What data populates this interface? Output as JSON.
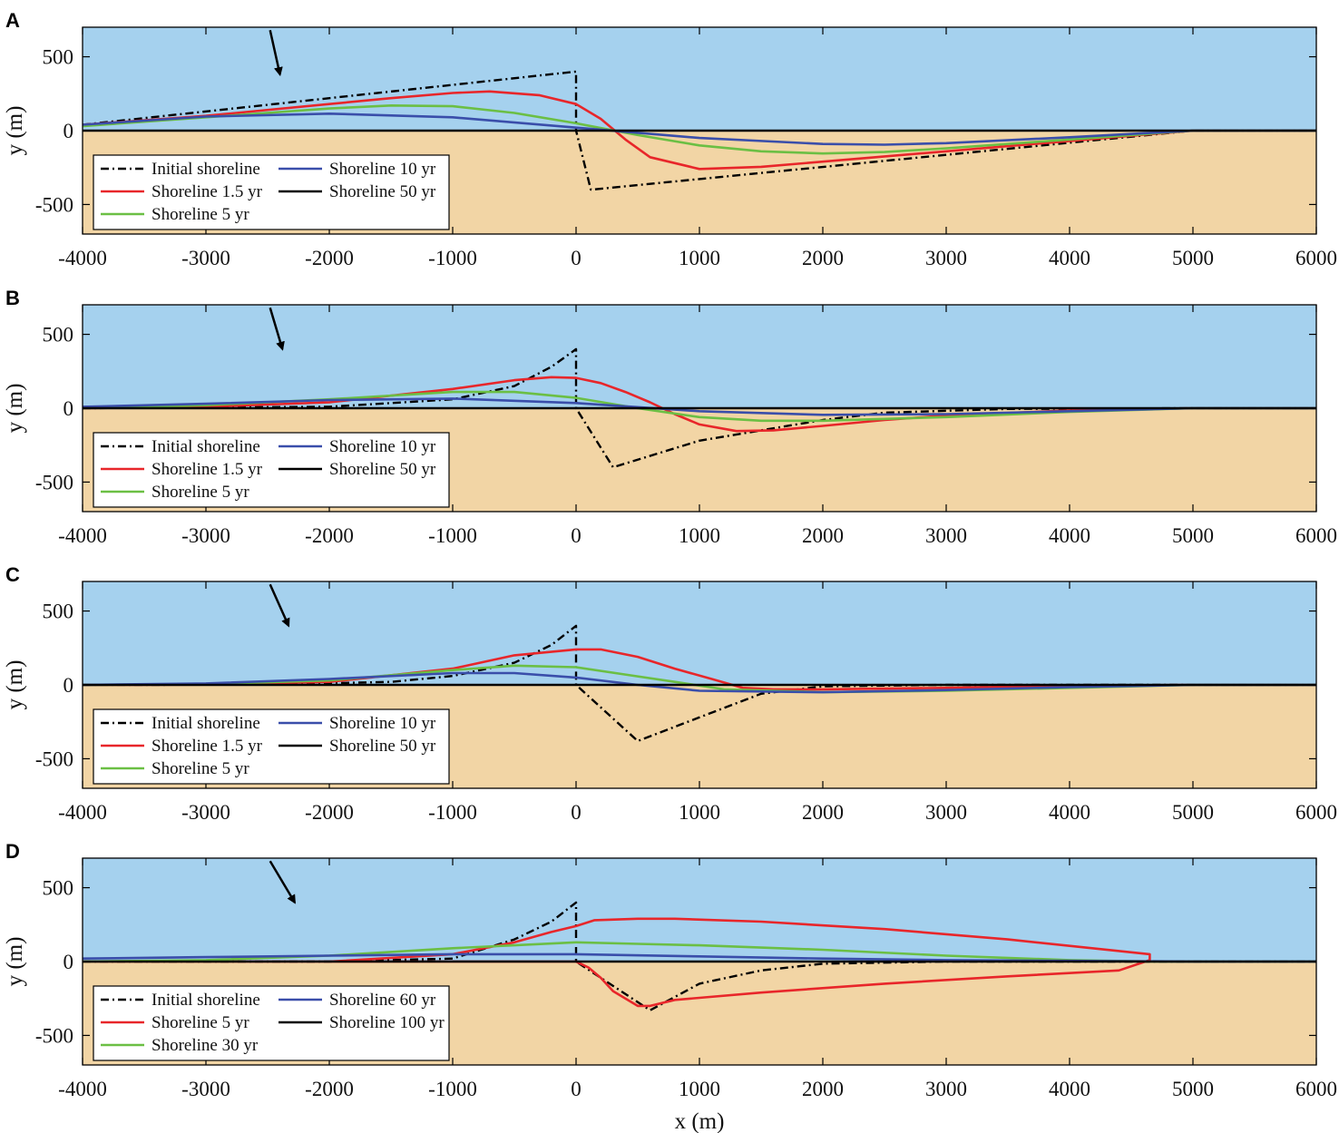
{
  "figure": {
    "xlabel": "x (m)",
    "ylabel": "y (m)"
  },
  "chart_data": [
    {
      "panel": "A",
      "type": "line",
      "xlabel": "",
      "ylabel": "y (m)",
      "xlim": [
        -4000,
        6000
      ],
      "ylim": [
        -700,
        700
      ],
      "xticks": [
        "-4000",
        "-3000",
        "-2000",
        "-1000",
        "0",
        "1000",
        "2000",
        "3000",
        "4000",
        "5000",
        "6000"
      ],
      "yticks": [
        "500",
        "0",
        "-500"
      ],
      "regions": {
        "sea_color": "#a5d1ee",
        "land_color": "#f2d5a5"
      },
      "wave_arrow": {
        "from": [
          -2480,
          680
        ],
        "to": [
          -2400,
          380
        ]
      },
      "legend": {
        "placement": "lower-left",
        "entries": [
          "Initial shoreline",
          "Shoreline 10 yr",
          "Shoreline 1.5 yr",
          "Shoreline 50 yr",
          "Shoreline 5 yr"
        ]
      },
      "series": [
        {
          "name": "Initial shoreline",
          "color": "#000000",
          "style": "dashdot",
          "x": [
            -4000,
            0,
            0,
            120,
            5000,
            6000
          ],
          "y": [
            40,
            400,
            0,
            -400,
            0,
            0
          ]
        },
        {
          "name": "Shoreline 1.5 yr",
          "color": "#e8262a",
          "style": "solid",
          "x": [
            -4000,
            -3000,
            -2000,
            -1500,
            -1000,
            -700,
            -300,
            0,
            200,
            400,
            600,
            1000,
            1500,
            2000,
            3000,
            4000,
            5000,
            6000
          ],
          "y": [
            40,
            100,
            180,
            220,
            255,
            265,
            240,
            180,
            80,
            -60,
            -180,
            -260,
            -245,
            -210,
            -140,
            -70,
            0,
            0
          ]
        },
        {
          "name": "Shoreline 5 yr",
          "color": "#6bbf44",
          "style": "solid",
          "x": [
            -4000,
            -3000,
            -2000,
            -1500,
            -1000,
            -500,
            0,
            500,
            1000,
            1500,
            2000,
            2500,
            3000,
            4000,
            5000,
            6000
          ],
          "y": [
            30,
            90,
            150,
            170,
            165,
            120,
            50,
            -30,
            -100,
            -140,
            -155,
            -145,
            -120,
            -60,
            0,
            0
          ]
        },
        {
          "name": "Shoreline 10 yr",
          "color": "#3a4eaa",
          "style": "solid",
          "x": [
            -4000,
            -3000,
            -2000,
            -1000,
            0,
            1000,
            2000,
            2500,
            3000,
            4000,
            5000,
            6000
          ],
          "y": [
            40,
            95,
            115,
            90,
            20,
            -50,
            -90,
            -95,
            -85,
            -45,
            0,
            0
          ]
        },
        {
          "name": "Shoreline 50 yr",
          "color": "#000000",
          "style": "solid",
          "x": [
            -4000,
            6000
          ],
          "y": [
            0,
            0
          ]
        }
      ]
    },
    {
      "panel": "B",
      "type": "line",
      "xlabel": "",
      "ylabel": "y (m)",
      "xlim": [
        -4000,
        6000
      ],
      "ylim": [
        -700,
        700
      ],
      "xticks": [
        "-4000",
        "-3000",
        "-2000",
        "-1000",
        "0",
        "1000",
        "2000",
        "3000",
        "4000",
        "5000",
        "6000"
      ],
      "yticks": [
        "500",
        "0",
        "-500"
      ],
      "regions": {
        "sea_color": "#a5d1ee",
        "land_color": "#f2d5a5"
      },
      "wave_arrow": {
        "from": [
          -2480,
          680
        ],
        "to": [
          -2380,
          400
        ]
      },
      "legend": {
        "placement": "lower-left",
        "entries": [
          "Initial shoreline",
          "Shoreline 10 yr",
          "Shoreline 1.5 yr",
          "Shoreline 50 yr",
          "Shoreline 5 yr"
        ]
      },
      "series": [
        {
          "name": "Initial shoreline",
          "color": "#000000",
          "style": "dashdot",
          "x": [
            -4000,
            -2000,
            -1000,
            -500,
            -200,
            0,
            0,
            300,
            1000,
            2000,
            2500,
            3500,
            5000,
            6000
          ],
          "y": [
            0,
            10,
            60,
            150,
            280,
            400,
            0,
            -400,
            -220,
            -80,
            -30,
            -5,
            0,
            0
          ]
        },
        {
          "name": "Shoreline 1.5 yr",
          "color": "#e8262a",
          "style": "solid",
          "x": [
            -4000,
            -3000,
            -2000,
            -1000,
            -500,
            -200,
            0,
            200,
            400,
            600,
            800,
            1000,
            1300,
            1600,
            2000,
            2500,
            3000,
            4000,
            5000,
            6000
          ],
          "y": [
            0,
            10,
            40,
            130,
            190,
            210,
            205,
            170,
            110,
            40,
            -40,
            -110,
            -155,
            -150,
            -120,
            -80,
            -50,
            -15,
            0,
            0
          ]
        },
        {
          "name": "Shoreline 5 yr",
          "color": "#6bbf44",
          "style": "solid",
          "x": [
            -4000,
            -3000,
            -2000,
            -1000,
            -500,
            0,
            500,
            1000,
            1500,
            2000,
            3000,
            4000,
            5000,
            6000
          ],
          "y": [
            0,
            20,
            60,
            110,
            110,
            70,
            0,
            -60,
            -85,
            -85,
            -60,
            -25,
            0,
            0
          ]
        },
        {
          "name": "Shoreline 10 yr",
          "color": "#3a4eaa",
          "style": "solid",
          "x": [
            -4000,
            -3000,
            -2000,
            -1000,
            0,
            1000,
            2000,
            3000,
            4000,
            5000,
            6000
          ],
          "y": [
            10,
            30,
            55,
            65,
            35,
            -20,
            -45,
            -40,
            -20,
            0,
            0
          ]
        },
        {
          "name": "Shoreline 50 yr",
          "color": "#000000",
          "style": "solid",
          "x": [
            -4000,
            6000
          ],
          "y": [
            0,
            0
          ]
        }
      ]
    },
    {
      "panel": "C",
      "type": "line",
      "xlabel": "",
      "ylabel": "y (m)",
      "xlim": [
        -4000,
        6000
      ],
      "ylim": [
        -700,
        700
      ],
      "xticks": [
        "-4000",
        "-3000",
        "-2000",
        "-1000",
        "0",
        "1000",
        "2000",
        "3000",
        "4000",
        "5000",
        "6000"
      ],
      "yticks": [
        "500",
        "0",
        "-500"
      ],
      "regions": {
        "sea_color": "#a5d1ee",
        "land_color": "#f2d5a5"
      },
      "wave_arrow": {
        "from": [
          -2480,
          680
        ],
        "to": [
          -2330,
          400
        ]
      },
      "legend": {
        "placement": "lower-left",
        "entries": [
          "Initial shoreline",
          "Shoreline 10 yr",
          "Shoreline 1.5 yr",
          "Shoreline 50 yr",
          "Shoreline 5 yr"
        ]
      },
      "series": [
        {
          "name": "Initial shoreline",
          "color": "#000000",
          "style": "dashdot",
          "x": [
            -4000,
            -2500,
            -1500,
            -1000,
            -500,
            -200,
            0,
            0,
            500,
            1000,
            1500,
            2000,
            3000,
            5000,
            6000
          ],
          "y": [
            0,
            2,
            20,
            60,
            150,
            270,
            400,
            0,
            -380,
            -220,
            -60,
            -10,
            0,
            0,
            0
          ]
        },
        {
          "name": "Shoreline 1.5 yr",
          "color": "#e8262a",
          "style": "solid",
          "x": [
            -4000,
            -3000,
            -2000,
            -1000,
            -500,
            0,
            200,
            500,
            800,
            1100,
            1350,
            1350,
            1600,
            2000,
            3000,
            4000,
            5000,
            6000
          ],
          "y": [
            0,
            2,
            20,
            110,
            200,
            240,
            240,
            190,
            110,
            40,
            -20,
            -20,
            -30,
            -30,
            -20,
            -5,
            0,
            0
          ]
        },
        {
          "name": "Shoreline 5 yr",
          "color": "#6bbf44",
          "style": "solid",
          "x": [
            -4000,
            -3000,
            -2000,
            -1000,
            -500,
            0,
            400,
            800,
            1200,
            2000,
            3000,
            4000,
            5000,
            6000
          ],
          "y": [
            0,
            5,
            30,
            100,
            130,
            120,
            70,
            20,
            -30,
            -50,
            -40,
            -20,
            0,
            0
          ]
        },
        {
          "name": "Shoreline 10 yr",
          "color": "#3a4eaa",
          "style": "solid",
          "x": [
            -4000,
            -3000,
            -2000,
            -1000,
            -500,
            0,
            500,
            1000,
            2000,
            3000,
            4000,
            5000,
            6000
          ],
          "y": [
            0,
            10,
            40,
            80,
            80,
            50,
            0,
            -40,
            -50,
            -35,
            -15,
            0,
            0
          ]
        },
        {
          "name": "Shoreline 50 yr",
          "color": "#000000",
          "style": "solid",
          "x": [
            -4000,
            6000
          ],
          "y": [
            0,
            0
          ]
        }
      ]
    },
    {
      "panel": "D",
      "type": "line",
      "xlabel": "x (m)",
      "ylabel": "y (m)",
      "xlim": [
        -4000,
        6000
      ],
      "ylim": [
        -700,
        700
      ],
      "xticks": [
        "-4000",
        "-3000",
        "-2000",
        "-1000",
        "0",
        "1000",
        "2000",
        "3000",
        "4000",
        "5000",
        "6000"
      ],
      "yticks": [
        "500",
        "0",
        "-500"
      ],
      "regions": {
        "sea_color": "#a5d1ee",
        "land_color": "#f2d5a5"
      },
      "wave_arrow": {
        "from": [
          -2480,
          680
        ],
        "to": [
          -2280,
          400
        ]
      },
      "legend": {
        "placement": "lower-left",
        "entries": [
          "Initial shoreline",
          "Shoreline 60 yr",
          "Shoreline 5 yr",
          "Shoreline 100 yr",
          "Shoreline 30 yr"
        ]
      },
      "series": [
        {
          "name": "Initial shoreline",
          "color": "#000000",
          "style": "dashdot",
          "x": [
            -4000,
            -2000,
            -1000,
            -500,
            -200,
            0,
            0,
            600,
            1000,
            1500,
            2000,
            3000,
            5000,
            6000
          ],
          "y": [
            0,
            0,
            20,
            150,
            270,
            400,
            0,
            -330,
            -150,
            -60,
            -15,
            0,
            0,
            0
          ]
        },
        {
          "name": "Shoreline 5 yr",
          "color": "#e8262a",
          "style": "solid",
          "x": [
            -4000,
            -2000,
            -1000,
            -500,
            -200,
            0,
            0,
            150,
            500,
            800,
            1500,
            2500,
            3500,
            4650,
            4650,
            4400,
            3500,
            2500,
            1500,
            800,
            600,
            500,
            300,
            200,
            100,
            0,
            -500,
            -1000,
            -2000,
            -3000,
            -4000
          ],
          "y": [
            0,
            0,
            50,
            130,
            200,
            240,
            240,
            280,
            290,
            290,
            270,
            220,
            150,
            50,
            10,
            -60,
            -100,
            -150,
            -210,
            -260,
            -300,
            -300,
            -200,
            -110,
            -40,
            0,
            0,
            0,
            0,
            0,
            0
          ]
        },
        {
          "name": "Shoreline 30 yr",
          "color": "#6bbf44",
          "style": "solid",
          "x": [
            -4000,
            -3000,
            -2000,
            -1000,
            -500,
            0,
            500,
            1000,
            2000,
            3000,
            4000,
            4700,
            5000,
            6000
          ],
          "y": [
            0,
            10,
            40,
            90,
            110,
            130,
            120,
            110,
            80,
            40,
            10,
            0,
            0,
            0
          ]
        },
        {
          "name": "Shoreline 60 yr",
          "color": "#3a4eaa",
          "style": "solid",
          "x": [
            -4000,
            -3000,
            -2000,
            -1000,
            0,
            1000,
            2000,
            3000,
            4000,
            5000,
            6000
          ],
          "y": [
            20,
            30,
            40,
            50,
            50,
            35,
            20,
            10,
            5,
            0,
            0
          ]
        },
        {
          "name": "Shoreline 100 yr",
          "color": "#000000",
          "style": "solid",
          "x": [
            -4000,
            6000
          ],
          "y": [
            0,
            0
          ]
        }
      ]
    }
  ]
}
